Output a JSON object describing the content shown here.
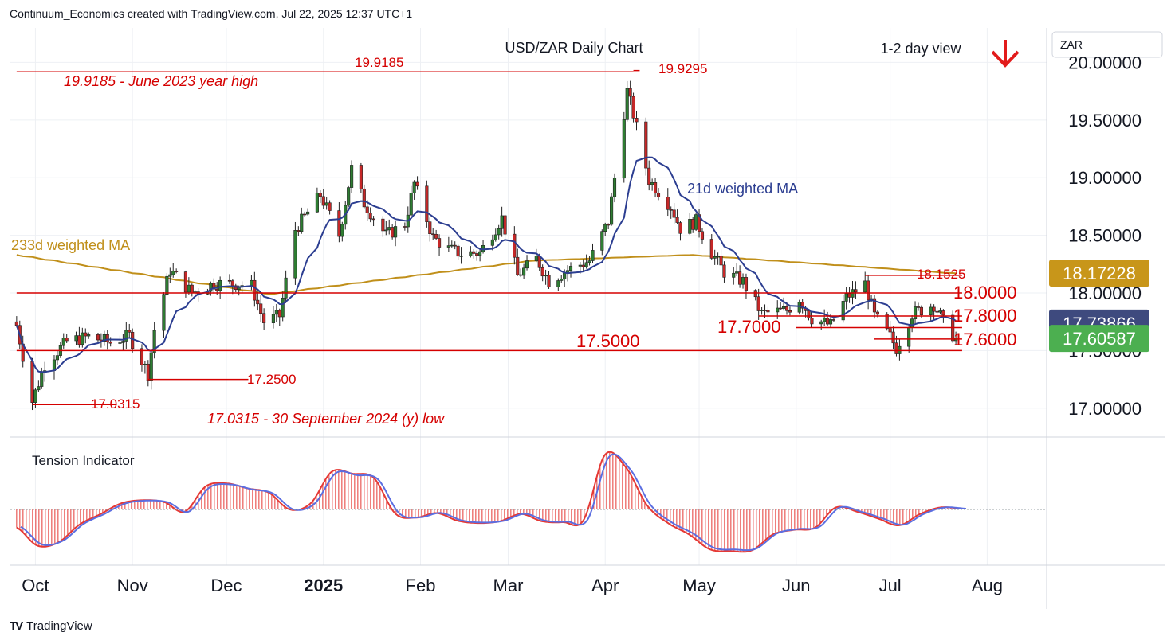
{
  "header": {
    "created_by": "Continuum_Economics created with TradingView.com, Jul 22, 2025 12:37 UTC+1"
  },
  "footer": {
    "brand": "TradingView",
    "logo": "TV"
  },
  "currency": "ZAR",
  "view": {
    "label": "1-2 day view",
    "direction_icon": "down-arrow-icon",
    "arrow_color": "#e21b1b"
  },
  "colors": {
    "up": "#2e7d32",
    "down": "#c62828",
    "level": "#d50000",
    "ma21": "#2c3e91",
    "ma233": "#c08f1a",
    "tension_red": "#e53935",
    "tension_blue": "#5b6ee1"
  },
  "chart_data": [
    {
      "type": "candlestick",
      "title": "USD/ZAR Daily Chart",
      "x_tick_labels": [
        "Oct",
        "Nov",
        "Dec",
        "2025",
        "Feb",
        "Mar",
        "Apr",
        "May",
        "Jun",
        "Jul",
        "Aug"
      ],
      "y_tick_labels": [
        "20.00000",
        "19.50000",
        "19.00000",
        "18.50000",
        "18.00000",
        "17.50000",
        "17.00000"
      ],
      "ylim": [
        16.75,
        20.3
      ],
      "grid": true,
      "price_badges": [
        {
          "label": "18.17228",
          "value": 18.17228,
          "color": "#c8961a"
        },
        {
          "label": "17.73866",
          "value": 17.73866,
          "color": "#3e4a7e"
        },
        {
          "label": "17.60587",
          "value": 17.60587,
          "color": "#4caf50"
        }
      ],
      "levels": [
        {
          "label": "19.9185",
          "value": 19.9185,
          "x_from": "2024-09-25",
          "x_to": "2025-04-10"
        },
        {
          "label": "19.9295",
          "value": 19.9295,
          "x_from": "2025-04-10",
          "x_to": "2025-04-12"
        },
        {
          "label": "18.1525",
          "value": 18.1525,
          "x_from": "2025-06-23",
          "x_to": "2025-07-24"
        },
        {
          "label": "18.0000",
          "value": 18.0,
          "x_from": "2024-09-25",
          "x_to": "2025-07-24"
        },
        {
          "label": "17.8000",
          "value": 17.8,
          "x_from": "2025-05-20",
          "x_to": "2025-07-24"
        },
        {
          "label": "17.7000",
          "value": 17.7,
          "x_from": "2025-06-01",
          "x_to": "2025-07-24"
        },
        {
          "label": "17.6000",
          "value": 17.6,
          "x_from": "2025-06-26",
          "x_to": "2025-07-24"
        },
        {
          "label": "17.5000",
          "value": 17.5,
          "x_from": "2024-09-25",
          "x_to": "2025-07-24"
        },
        {
          "label": "17.2500",
          "value": 17.25,
          "x_from": "2024-11-06",
          "x_to": "2024-12-08"
        },
        {
          "label": "17.0315",
          "value": 17.0315,
          "x_from": "2024-09-30",
          "x_to": "2024-10-27"
        }
      ],
      "annotations": [
        {
          "text": "19.9185 - June 2023 year high"
        },
        {
          "text": "17.0315 - 30 September 2024 (y) low"
        },
        {
          "text": "21d weighted MA"
        },
        {
          "text": "233d weighted MA"
        }
      ],
      "anchors": [
        [
          "2024-09-25",
          17.72
        ],
        [
          "2024-09-30",
          17.06
        ],
        [
          "2024-10-04",
          17.38
        ],
        [
          "2024-10-11",
          17.58
        ],
        [
          "2024-10-18",
          17.62
        ],
        [
          "2024-10-25",
          17.57
        ],
        [
          "2024-10-31",
          17.63
        ],
        [
          "2024-11-06",
          17.3
        ],
        [
          "2024-11-08",
          17.68
        ],
        [
          "2024-11-13",
          18.2
        ],
        [
          "2024-11-20",
          18.0
        ],
        [
          "2024-11-27",
          18.08
        ],
        [
          "2024-12-04",
          18.08
        ],
        [
          "2024-12-09",
          18.06
        ],
        [
          "2024-12-13",
          17.75
        ],
        [
          "2024-12-18",
          17.8
        ],
        [
          "2024-12-23",
          18.55
        ],
        [
          "2024-12-31",
          18.85
        ],
        [
          "2025-01-06",
          18.5
        ],
        [
          "2025-01-10",
          19.08
        ],
        [
          "2025-01-14",
          18.78
        ],
        [
          "2025-01-21",
          18.5
        ],
        [
          "2025-01-27",
          18.6
        ],
        [
          "2025-01-30",
          18.95
        ],
        [
          "2025-02-05",
          18.48
        ],
        [
          "2025-02-10",
          18.38
        ],
        [
          "2025-02-14",
          18.34
        ],
        [
          "2025-02-20",
          18.35
        ],
        [
          "2025-02-27",
          18.65
        ],
        [
          "2025-03-04",
          18.15
        ],
        [
          "2025-03-10",
          18.3
        ],
        [
          "2025-03-14",
          18.1
        ],
        [
          "2025-03-20",
          18.2
        ],
        [
          "2025-03-27",
          18.28
        ],
        [
          "2025-04-02",
          18.62
        ],
        [
          "2025-04-08",
          19.75
        ],
        [
          "2025-04-10",
          19.55
        ],
        [
          "2025-04-15",
          18.98
        ],
        [
          "2025-04-22",
          18.75
        ],
        [
          "2025-04-25",
          18.56
        ],
        [
          "2025-04-30",
          18.62
        ],
        [
          "2025-05-05",
          18.35
        ],
        [
          "2025-05-09",
          18.18
        ],
        [
          "2025-05-15",
          18.1
        ],
        [
          "2025-05-21",
          17.82
        ],
        [
          "2025-05-29",
          17.85
        ],
        [
          "2025-06-02",
          17.95
        ],
        [
          "2025-06-06",
          17.78
        ],
        [
          "2025-06-12",
          17.72
        ],
        [
          "2025-06-17",
          17.96
        ],
        [
          "2025-06-23",
          18.08
        ],
        [
          "2025-06-26",
          17.8
        ],
        [
          "2025-07-01",
          17.62
        ],
        [
          "2025-07-03",
          17.52
        ],
        [
          "2025-07-08",
          17.82
        ],
        [
          "2025-07-15",
          17.9
        ],
        [
          "2025-07-18",
          17.75
        ],
        [
          "2025-07-22",
          17.6
        ]
      ]
    },
    {
      "type": "area",
      "title": "Tension Indicator",
      "series": [
        {
          "values": [
            -0.4,
            -0.8,
            -0.72,
            -0.33,
            -0.1,
            0.15,
            0.22,
            0.18,
            -0.05,
            0.55,
            0.62,
            0.5,
            0.4,
            0.0,
            0.15,
            0.9,
            0.85,
            0.75,
            -0.08,
            -0.18,
            -0.08,
            -0.25,
            -0.3,
            -0.26,
            -0.1,
            -0.26,
            -0.28,
            -0.22,
            1.3,
            1.0,
            0.1,
            -0.3,
            -0.55,
            -0.88,
            -0.92,
            -0.9,
            -0.55,
            -0.45,
            -0.4,
            0.05,
            -0.05,
            -0.2,
            -0.35,
            -0.1,
            0.05,
            0.02
          ]
        }
      ],
      "ylim": [
        -1.0,
        1.4
      ]
    }
  ]
}
